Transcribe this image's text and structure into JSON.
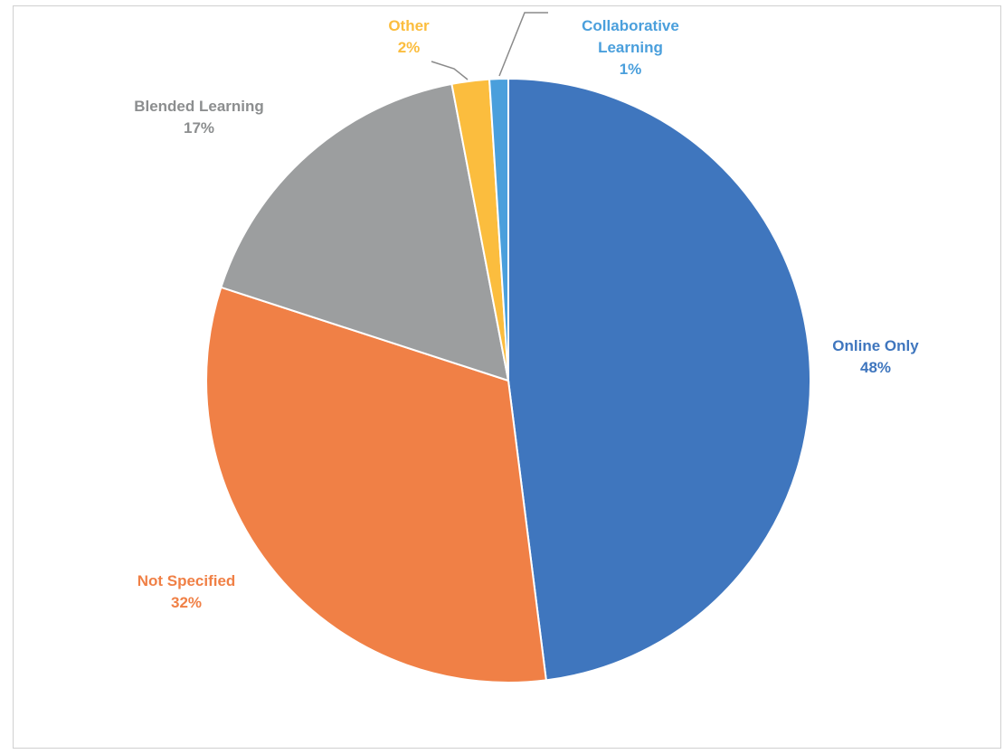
{
  "chart_data": {
    "type": "pie",
    "title": "",
    "slices": [
      {
        "name": "Online Only",
        "value": 48,
        "label": "48%",
        "color": "#3F76BE"
      },
      {
        "name": "Not Specified",
        "value": 32,
        "label": "32%",
        "color": "#F08046"
      },
      {
        "name": "Blended Learning",
        "value": 17,
        "label": "17%",
        "color": "#9C9E9F"
      },
      {
        "name": "Other",
        "value": 2,
        "label": "2%",
        "color": "#FBBD3E"
      },
      {
        "name": "Collaborative Learning",
        "value": 1,
        "label": "1%",
        "color": "#4A9FDC"
      }
    ],
    "legend": "none",
    "data_labels": "outside, category name and percentage"
  }
}
